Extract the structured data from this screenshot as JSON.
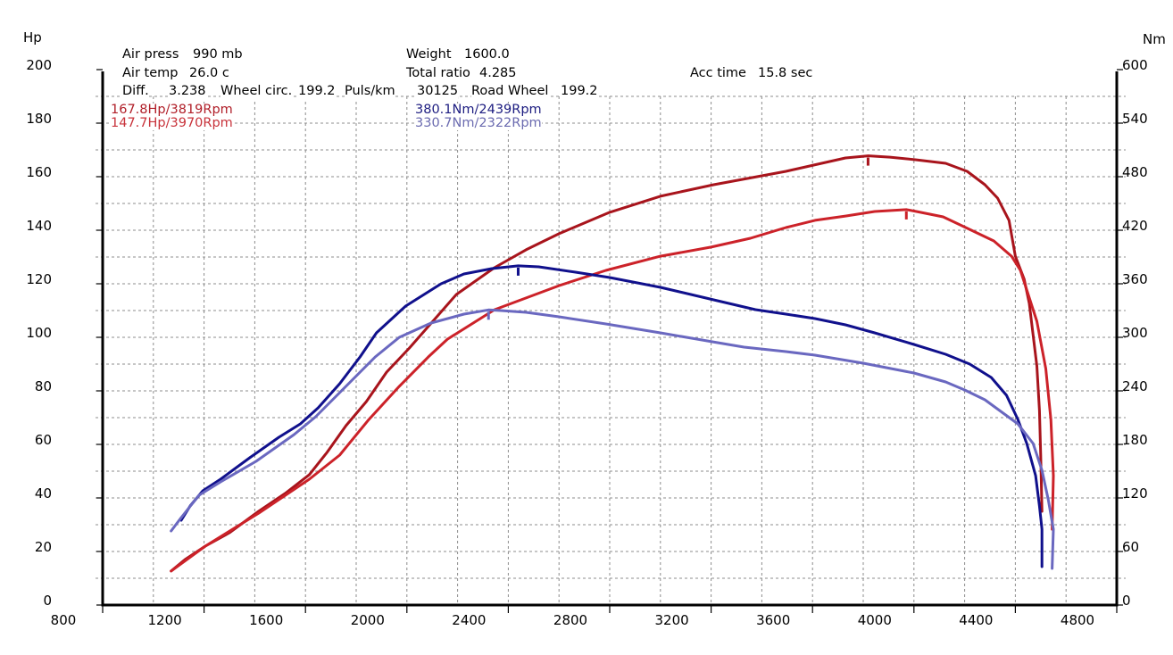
{
  "info": {
    "air_press": {
      "label": "Air press",
      "value": "990 mb"
    },
    "air_temp": {
      "label": "Air temp",
      "value": "26.0 c"
    },
    "diff": {
      "label": "Diff.",
      "value": "3.238"
    },
    "wheel_circ": {
      "label": "Wheel circ.",
      "value": "199.2"
    },
    "puls_km": {
      "label": "Puls/km",
      "value": "30125"
    },
    "road_wheel": {
      "label": "Road Wheel",
      "value": "199.2"
    },
    "weight": {
      "label": "Weight",
      "value": "1600.0"
    },
    "total_ratio": {
      "label": "Total ratio",
      "value": "4.285"
    },
    "acc_time": {
      "label": "Acc time",
      "value": "15.8 sec"
    }
  },
  "legend": {
    "power_1": {
      "text": "167.8Hp/3819Rpm",
      "color": "#b01e28"
    },
    "power_2": {
      "text": "147.7Hp/3970Rpm",
      "color": "#c8323a"
    },
    "torque_1": {
      "text": "380.1Nm/2439Rpm",
      "color": "#1c1c80"
    },
    "torque_2": {
      "text": "330.7Nm/2322Rpm",
      "color": "#6b6bb0"
    }
  },
  "chart_data": {
    "type": "line",
    "title": "",
    "x_axis": {
      "label": "Rpm",
      "min": 800,
      "max": 4800,
      "ticks": [
        800,
        1200,
        1600,
        2000,
        2400,
        2800,
        3200,
        3600,
        4000,
        4400,
        4800
      ]
    },
    "y_left": {
      "label": "Hp",
      "min": 0,
      "max": 200,
      "ticks": [
        0,
        20,
        40,
        60,
        80,
        100,
        120,
        140,
        160,
        180,
        200
      ]
    },
    "y_right": {
      "label": "Nm",
      "min": 0,
      "max": 600,
      "ticks": [
        0,
        60,
        120,
        180,
        240,
        300,
        360,
        420,
        480,
        540,
        600
      ]
    },
    "grid": {
      "on": true,
      "x_step": 200,
      "y_step": 10
    },
    "legend_placement": "top-left",
    "series": [
      {
        "name": "Power 1",
        "axis": "left",
        "unit": "Hp",
        "color": "#a8141c",
        "peak": {
          "value": 167.8,
          "rpm": 3819
        },
        "points": [
          [
            1070,
            12.7
          ],
          [
            1125,
            17.0
          ],
          [
            1205,
            22.0
          ],
          [
            1300,
            27.0
          ],
          [
            1415,
            35.0
          ],
          [
            1520,
            41.7
          ],
          [
            1615,
            48.7
          ],
          [
            1685,
            57.0
          ],
          [
            1760,
            67.0
          ],
          [
            1840,
            76.0
          ],
          [
            1920,
            87.0
          ],
          [
            2010,
            96.0
          ],
          [
            2195,
            116.0
          ],
          [
            2345,
            126.0
          ],
          [
            2470,
            132.7
          ],
          [
            2600,
            138.7
          ],
          [
            2800,
            146.7
          ],
          [
            3000,
            152.7
          ],
          [
            3210,
            157.0
          ],
          [
            3495,
            162.0
          ],
          [
            3730,
            167.0
          ],
          [
            3820,
            167.8
          ],
          [
            3905,
            167.3
          ],
          [
            4010,
            166.3
          ],
          [
            4125,
            165.0
          ],
          [
            4210,
            162.0
          ],
          [
            4280,
            157.0
          ],
          [
            4330,
            152.0
          ],
          [
            4375,
            143.7
          ],
          [
            4400,
            130.3
          ],
          [
            4435,
            121.7
          ],
          [
            4455,
            112.7
          ],
          [
            4485,
            89.3
          ],
          [
            4495,
            72.7
          ],
          [
            4500,
            56.0
          ],
          [
            4505,
            35.0
          ]
        ]
      },
      {
        "name": "Power 2",
        "axis": "left",
        "unit": "Hp",
        "color": "#cc2229",
        "peak": {
          "value": 147.7,
          "rpm": 3970
        },
        "points": [
          [
            1070,
            12.7
          ],
          [
            1205,
            22.0
          ],
          [
            1415,
            34.3
          ],
          [
            1615,
            47.0
          ],
          [
            1735,
            56.0
          ],
          [
            1850,
            69.3
          ],
          [
            1970,
            81.7
          ],
          [
            2085,
            92.7
          ],
          [
            2160,
            99.3
          ],
          [
            2345,
            110.3
          ],
          [
            2600,
            119.3
          ],
          [
            2785,
            125.0
          ],
          [
            3000,
            130.3
          ],
          [
            3200,
            133.7
          ],
          [
            3355,
            137.0
          ],
          [
            3495,
            141.0
          ],
          [
            3610,
            143.7
          ],
          [
            3730,
            145.3
          ],
          [
            3845,
            147.0
          ],
          [
            3970,
            147.7
          ],
          [
            4010,
            147.0
          ],
          [
            4115,
            145.0
          ],
          [
            4220,
            140.3
          ],
          [
            4315,
            136.0
          ],
          [
            4385,
            130.3
          ],
          [
            4420,
            125.0
          ],
          [
            4485,
            106.0
          ],
          [
            4520,
            88.3
          ],
          [
            4540,
            69.3
          ],
          [
            4550,
            48.3
          ],
          [
            4545,
            28.3
          ]
        ]
      },
      {
        "name": "Torque 1",
        "axis": "right",
        "unit": "Nm",
        "color": "#10108c",
        "peak": {
          "value": 380.1,
          "rpm": 2439
        },
        "points": [
          [
            1110,
            95
          ],
          [
            1145,
            111
          ],
          [
            1195,
            128
          ],
          [
            1265,
            141
          ],
          [
            1380,
            165
          ],
          [
            1495,
            188
          ],
          [
            1580,
            203
          ],
          [
            1650,
            221
          ],
          [
            1735,
            248
          ],
          [
            1815,
            278
          ],
          [
            1880,
            305
          ],
          [
            1995,
            335
          ],
          [
            2135,
            360
          ],
          [
            2225,
            371
          ],
          [
            2335,
            377
          ],
          [
            2439,
            380.1
          ],
          [
            2520,
            379
          ],
          [
            2665,
            373
          ],
          [
            2800,
            367
          ],
          [
            3000,
            356
          ],
          [
            3225,
            341
          ],
          [
            3375,
            331
          ],
          [
            3495,
            326
          ],
          [
            3610,
            321
          ],
          [
            3730,
            314
          ],
          [
            3845,
            305
          ],
          [
            4000,
            292
          ],
          [
            4125,
            281
          ],
          [
            4220,
            270
          ],
          [
            4305,
            255
          ],
          [
            4365,
            235
          ],
          [
            4410,
            208
          ],
          [
            4445,
            181
          ],
          [
            4480,
            145
          ],
          [
            4495,
            111
          ],
          [
            4505,
            85
          ],
          [
            4505,
            43
          ]
        ]
      },
      {
        "name": "Torque 2",
        "axis": "right",
        "unit": "Nm",
        "color": "#6a68c0",
        "peak": {
          "value": 330.7,
          "rpm": 2322
        },
        "points": [
          [
            1070,
            83
          ],
          [
            1110,
            98
          ],
          [
            1180,
            123
          ],
          [
            1265,
            138
          ],
          [
            1405,
            161
          ],
          [
            1555,
            191
          ],
          [
            1640,
            211
          ],
          [
            1735,
            238
          ],
          [
            1875,
            278
          ],
          [
            1970,
            300
          ],
          [
            2095,
            316
          ],
          [
            2225,
            326
          ],
          [
            2322,
            330.7
          ],
          [
            2370,
            330
          ],
          [
            2470,
            328
          ],
          [
            2600,
            323
          ],
          [
            2785,
            315
          ],
          [
            3000,
            305
          ],
          [
            3205,
            295
          ],
          [
            3330,
            289
          ],
          [
            3495,
            284
          ],
          [
            3610,
            280
          ],
          [
            3800,
            271
          ],
          [
            4000,
            260
          ],
          [
            4125,
            250
          ],
          [
            4200,
            241
          ],
          [
            4280,
            230
          ],
          [
            4410,
            203
          ],
          [
            4470,
            181
          ],
          [
            4505,
            151
          ],
          [
            4530,
            118
          ],
          [
            4550,
            85
          ],
          [
            4545,
            41
          ]
        ]
      }
    ]
  }
}
